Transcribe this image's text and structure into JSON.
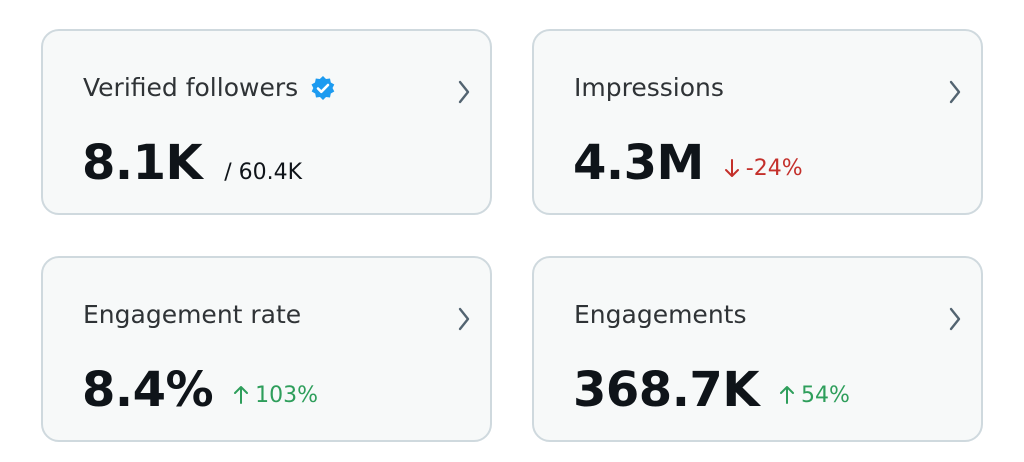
{
  "cards": [
    {
      "title": "Verified followers",
      "verified": true,
      "value": "8.1K",
      "detail": "/ 60.4K"
    },
    {
      "title": "Impressions",
      "value": "4.3M",
      "change": "-24%",
      "trend": "down"
    },
    {
      "title": "Engagement rate",
      "value": "8.4%",
      "change": "103%",
      "trend": "up"
    },
    {
      "title": "Engagements",
      "value": "368.7K",
      "change": "54%",
      "trend": "up"
    }
  ]
}
